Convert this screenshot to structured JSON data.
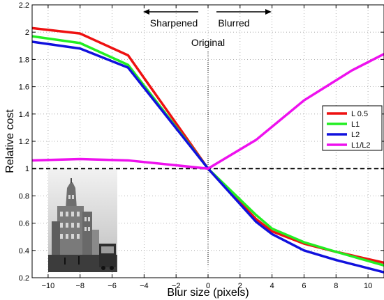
{
  "chart_data": {
    "type": "line",
    "xlabel": "Blur size (pixels)",
    "ylabel": "Relative cost",
    "xlim": [
      -11,
      11
    ],
    "ylim": [
      0.2,
      2.2
    ],
    "xticks": [
      -10,
      -8,
      -6,
      -4,
      -2,
      0,
      2,
      4,
      6,
      8,
      10
    ],
    "yticks": [
      0.2,
      0.4,
      0.6,
      0.8,
      1.0,
      1.2,
      1.4,
      1.6,
      1.8,
      2.0,
      2.2
    ],
    "xtick_labels": [
      "−10",
      "−8",
      "−6",
      "−4",
      "−2",
      "0",
      "2",
      "4",
      "6",
      "8",
      "10"
    ],
    "ytick_labels": [
      "0.2",
      "0.4",
      "0.6",
      "0.8",
      "1",
      "1.2",
      "1.4",
      "1.6",
      "1.8",
      "2",
      "2.2"
    ],
    "grid": true,
    "legend_position": "right",
    "series": [
      {
        "name": "L 0.5",
        "color": "#ee1111",
        "x": [
          -11,
          -8,
          -5,
          0,
          3,
          4,
          6,
          8,
          11
        ],
        "y": [
          2.03,
          1.99,
          1.83,
          1.0,
          0.63,
          0.54,
          0.45,
          0.39,
          0.31
        ]
      },
      {
        "name": "L1",
        "color": "#22ee22",
        "x": [
          -11,
          -8,
          -5,
          0,
          3,
          4,
          6,
          8,
          11
        ],
        "y": [
          1.97,
          1.92,
          1.76,
          1.0,
          0.66,
          0.56,
          0.46,
          0.39,
          0.29
        ]
      },
      {
        "name": "L2",
        "color": "#1111dd",
        "x": [
          -11,
          -8,
          -5,
          0,
          3,
          4,
          6,
          8,
          11
        ],
        "y": [
          1.93,
          1.88,
          1.74,
          1.0,
          0.61,
          0.52,
          0.4,
          0.33,
          0.24
        ]
      },
      {
        "name": "L1/L2",
        "color": "#ee11ee",
        "x": [
          -11,
          -8,
          -5,
          0,
          3,
          6,
          9,
          11
        ],
        "y": [
          1.06,
          1.07,
          1.06,
          1.0,
          1.21,
          1.5,
          1.72,
          1.84
        ]
      }
    ],
    "reference_line": {
      "y": 1.0,
      "style": "dashed",
      "color": "#000000"
    },
    "original_marker": {
      "x": 0,
      "label": "Original"
    },
    "annotations": {
      "left": "Sharpened",
      "right": "Blurred"
    }
  },
  "inset": {
    "description_icon": "building-photo-icon"
  }
}
